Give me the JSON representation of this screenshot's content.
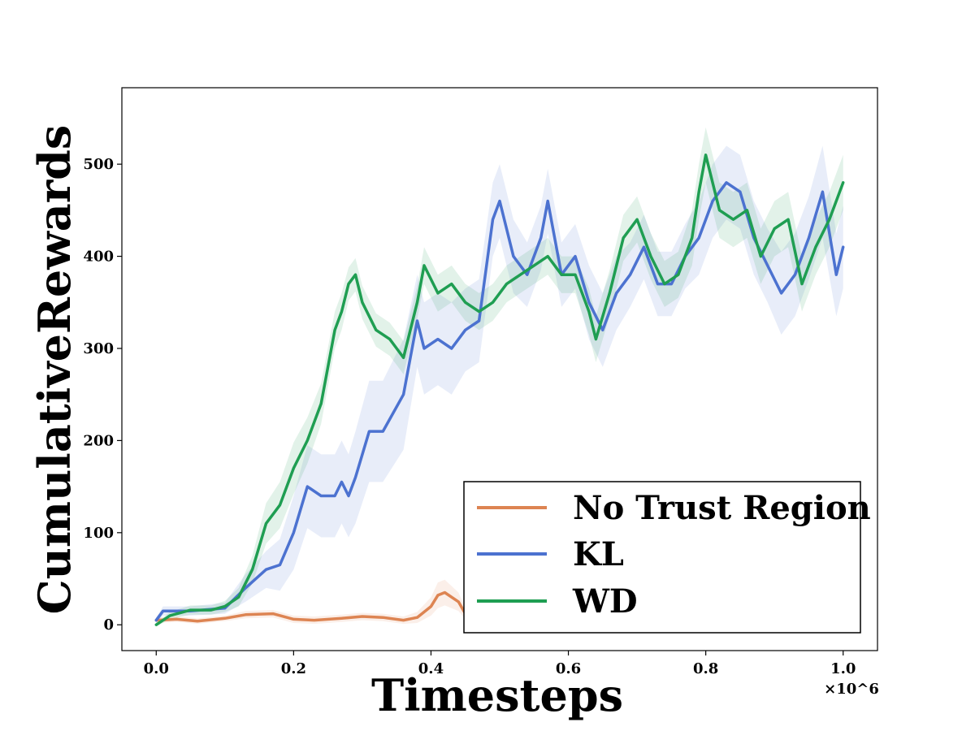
{
  "chart_data": {
    "type": "line",
    "title": "",
    "xlabel": "Timesteps",
    "ylabel": "CumulativeRewards",
    "x_multiplier": "×10^6",
    "xlim": [
      -0.05,
      1.05
    ],
    "ylim": [
      -28,
      583
    ],
    "xticks": [
      "0.0",
      "0.2",
      "0.4",
      "0.6",
      "0.8",
      "1.0"
    ],
    "yticks": [
      "0",
      "100",
      "200",
      "300",
      "400",
      "500"
    ],
    "grid": false,
    "legend_position": "bottom-right",
    "series": [
      {
        "name": "No Trust Region",
        "color": "#dd8452",
        "x": [
          0,
          0.03,
          0.06,
          0.1,
          0.13,
          0.17,
          0.2,
          0.23,
          0.27,
          0.3,
          0.33,
          0.36,
          0.38,
          0.4,
          0.41,
          0.42,
          0.44,
          0.45
        ],
        "y": [
          5,
          6,
          4,
          7,
          11,
          12,
          6,
          5,
          7,
          9,
          8,
          5,
          8,
          20,
          32,
          35,
          25,
          12
        ],
        "band": [
          3,
          3,
          3,
          3,
          4,
          4,
          4,
          4,
          4,
          4,
          4,
          4,
          6,
          10,
          14,
          14,
          10,
          6
        ]
      },
      {
        "name": "KL",
        "color": "#4c72d0",
        "x": [
          0,
          0.01,
          0.05,
          0.1,
          0.13,
          0.16,
          0.18,
          0.2,
          0.22,
          0.24,
          0.26,
          0.27,
          0.28,
          0.29,
          0.31,
          0.33,
          0.36,
          0.38,
          0.39,
          0.41,
          0.43,
          0.45,
          0.47,
          0.49,
          0.5,
          0.52,
          0.54,
          0.56,
          0.57,
          0.59,
          0.61,
          0.63,
          0.65,
          0.67,
          0.69,
          0.71,
          0.73,
          0.75,
          0.77,
          0.79,
          0.81,
          0.83,
          0.85,
          0.87,
          0.89,
          0.91,
          0.93,
          0.95,
          0.97,
          0.99,
          1.0
        ],
        "y": [
          5,
          15,
          15,
          18,
          40,
          60,
          65,
          100,
          150,
          140,
          140,
          155,
          140,
          160,
          210,
          210,
          250,
          330,
          300,
          310,
          300,
          320,
          330,
          440,
          460,
          400,
          380,
          420,
          460,
          380,
          400,
          350,
          320,
          360,
          380,
          410,
          370,
          370,
          400,
          420,
          460,
          480,
          470,
          420,
          390,
          360,
          380,
          420,
          470,
          380,
          410
        ],
        "band": [
          3,
          5,
          5,
          6,
          15,
          20,
          28,
          40,
          45,
          45,
          45,
          45,
          45,
          50,
          55,
          55,
          60,
          50,
          50,
          50,
          50,
          45,
          45,
          40,
          40,
          40,
          35,
          35,
          35,
          35,
          35,
          40,
          40,
          40,
          35,
          35,
          35,
          35,
          35,
          40,
          40,
          40,
          40,
          40,
          40,
          45,
          45,
          45,
          50,
          45,
          45
        ]
      },
      {
        "name": "WD",
        "color": "#1f9e52",
        "x": [
          0,
          0.02,
          0.05,
          0.08,
          0.1,
          0.12,
          0.14,
          0.16,
          0.18,
          0.2,
          0.22,
          0.24,
          0.26,
          0.27,
          0.28,
          0.29,
          0.3,
          0.32,
          0.34,
          0.35,
          0.36,
          0.38,
          0.39,
          0.41,
          0.43,
          0.45,
          0.47,
          0.49,
          0.51,
          0.53,
          0.55,
          0.57,
          0.59,
          0.61,
          0.63,
          0.64,
          0.66,
          0.68,
          0.7,
          0.72,
          0.74,
          0.76,
          0.78,
          0.79,
          0.8,
          0.82,
          0.84,
          0.86,
          0.88,
          0.9,
          0.92,
          0.94,
          0.96,
          0.98,
          1.0
        ],
        "y": [
          0,
          10,
          16,
          16,
          20,
          30,
          60,
          110,
          130,
          170,
          200,
          240,
          320,
          340,
          370,
          380,
          350,
          320,
          310,
          300,
          290,
          350,
          390,
          360,
          370,
          350,
          340,
          350,
          370,
          380,
          390,
          400,
          380,
          380,
          340,
          310,
          360,
          420,
          440,
          400,
          370,
          380,
          420,
          470,
          510,
          450,
          440,
          450,
          400,
          430,
          440,
          370,
          410,
          440,
          480
        ],
        "band": [
          2,
          4,
          5,
          5,
          6,
          10,
          15,
          22,
          25,
          28,
          25,
          22,
          20,
          20,
          18,
          18,
          18,
          18,
          18,
          18,
          18,
          18,
          20,
          20,
          20,
          20,
          20,
          20,
          20,
          20,
          20,
          20,
          20,
          20,
          25,
          25,
          25,
          25,
          25,
          25,
          25,
          25,
          30,
          30,
          30,
          30,
          30,
          30,
          30,
          30,
          30,
          30,
          30,
          30,
          30
        ]
      }
    ]
  }
}
